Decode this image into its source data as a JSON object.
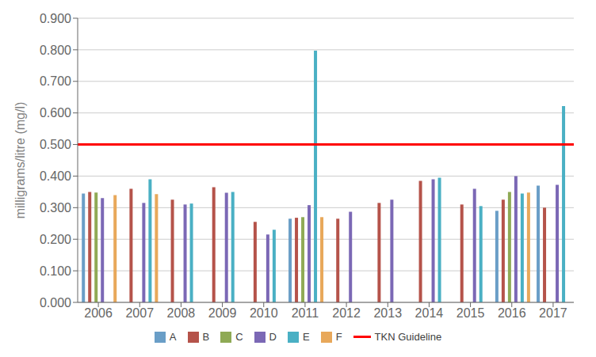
{
  "chart_data": {
    "type": "bar",
    "ylabel": "milligrams/litre (mg/l)",
    "categories": [
      "2006",
      "2007",
      "2008",
      "2009",
      "2010",
      "2011",
      "2012",
      "2013",
      "2014",
      "2015",
      "2016",
      "2017"
    ],
    "series": [
      {
        "name": "A",
        "color": "#6a9ec7",
        "values": [
          0.345,
          0.0,
          0.0,
          0.0,
          0.0,
          0.265,
          0.0,
          0.0,
          0.0,
          0.0,
          0.29,
          0.37
        ]
      },
      {
        "name": "B",
        "color": "#b5534a",
        "values": [
          0.35,
          0.36,
          0.325,
          0.365,
          0.255,
          0.268,
          0.265,
          0.315,
          0.385,
          0.31,
          0.325,
          0.3
        ]
      },
      {
        "name": "C",
        "color": "#8faa55",
        "values": [
          0.348,
          0.0,
          0.0,
          0.0,
          0.0,
          0.27,
          0.0,
          0.0,
          0.0,
          0.0,
          0.35,
          0.0
        ]
      },
      {
        "name": "D",
        "color": "#7b68b5",
        "values": [
          0.33,
          0.315,
          0.31,
          0.347,
          0.215,
          0.308,
          0.287,
          0.325,
          0.39,
          0.36,
          0.4,
          0.372
        ]
      },
      {
        "name": "E",
        "color": "#4ab0c4",
        "values": [
          0.0,
          0.39,
          0.313,
          0.35,
          0.23,
          0.797,
          0.0,
          0.0,
          0.395,
          0.305,
          0.345,
          0.622
        ]
      },
      {
        "name": "F",
        "color": "#e8a85a",
        "values": [
          0.34,
          0.343,
          0.0,
          0.0,
          0.0,
          0.27,
          0.0,
          0.0,
          0.0,
          0.0,
          0.348,
          0.0
        ]
      }
    ],
    "reference_lines": [
      {
        "name": "TKN Guideline",
        "value": 0.5,
        "color": "#ff0000"
      }
    ],
    "ylim": [
      0.0,
      0.9
    ],
    "yticks": [
      {
        "value": 0.0,
        "label": "0.000"
      },
      {
        "value": 0.1,
        "label": "0.100"
      },
      {
        "value": 0.2,
        "label": "0.200"
      },
      {
        "value": 0.3,
        "label": "0.300"
      },
      {
        "value": 0.4,
        "label": "0.400"
      },
      {
        "value": 0.5,
        "label": "0.500"
      },
      {
        "value": 0.6,
        "label": "0.600"
      },
      {
        "value": 0.7,
        "label": "0.700"
      },
      {
        "value": 0.8,
        "label": "0.800"
      },
      {
        "value": 0.9,
        "label": "0.900"
      }
    ],
    "grid": true,
    "legend": "bottom"
  }
}
